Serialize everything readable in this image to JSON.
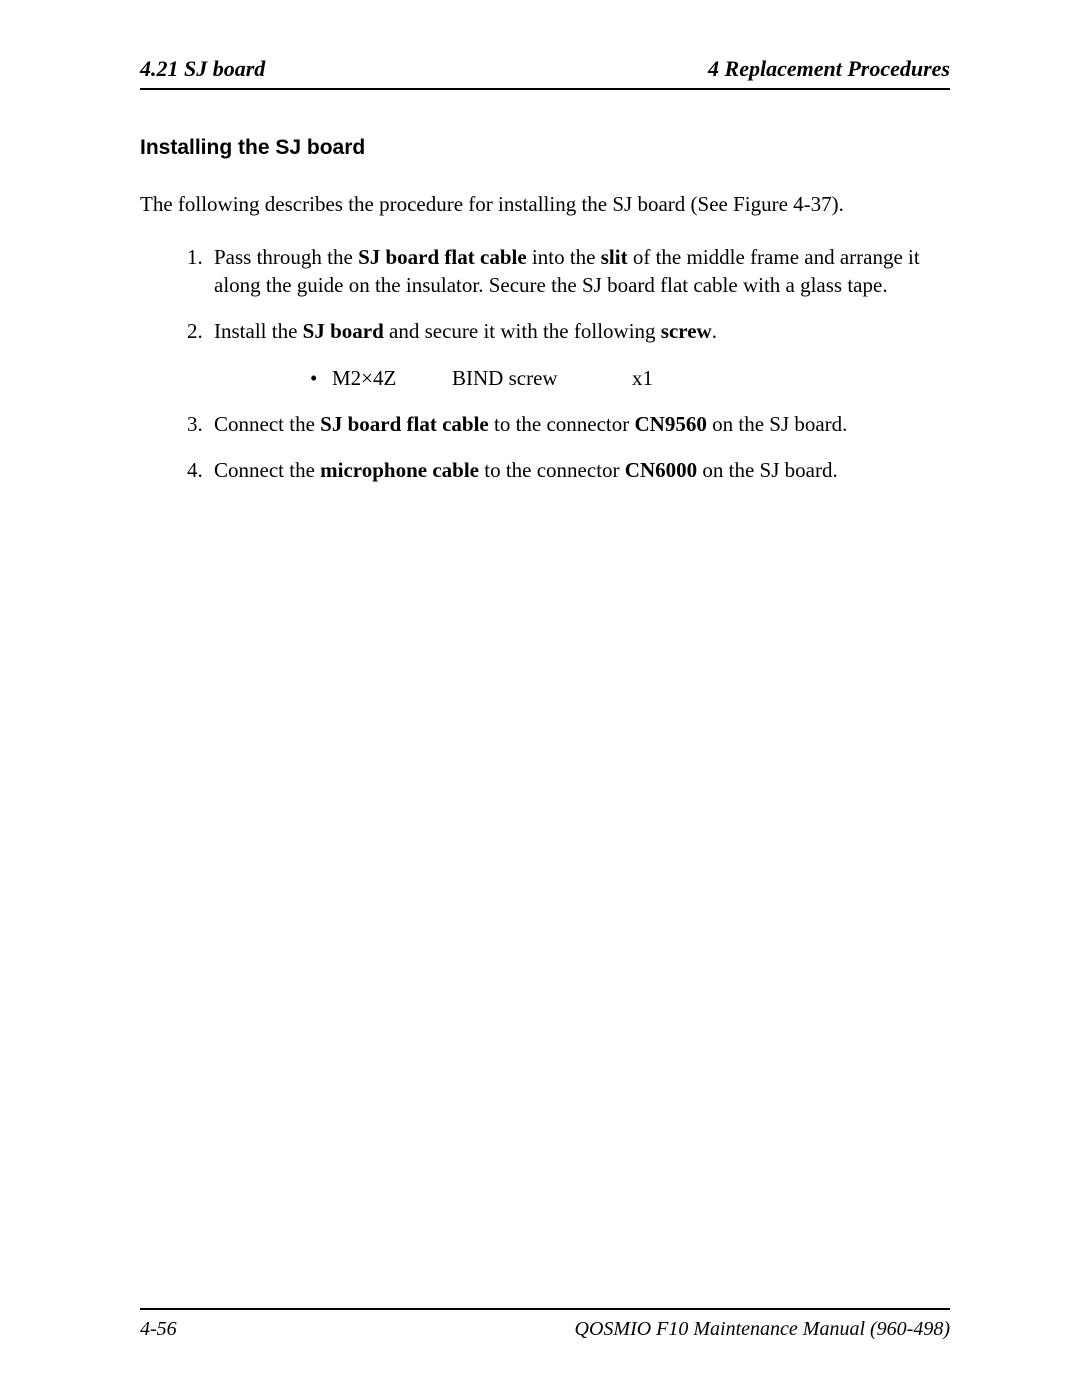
{
  "header": {
    "left": "4.21  SJ board",
    "right": "4  Replacement Procedures"
  },
  "section": {
    "title": "Installing the SJ board",
    "intro": "The following describes the procedure for installing the SJ board (See Figure 4-37).",
    "steps": {
      "s1_a": "Pass through the ",
      "s1_b": "SJ board flat cable",
      "s1_c": " into the ",
      "s1_d": "slit",
      "s1_e": " of the middle frame and arrange it along the guide on the insulator. Secure the SJ board flat cable with a glass tape.",
      "s2_a": "Install the ",
      "s2_b": "SJ board",
      "s2_c": " and secure it with the following ",
      "s2_d": "screw",
      "s2_e": ".",
      "bullet": {
        "spec": "M2×4Z",
        "type": "BIND screw",
        "qty": "x1"
      },
      "s3_a": "Connect the ",
      "s3_b": "SJ board flat cable",
      "s3_c": " to the connector ",
      "s3_d": "CN9560",
      "s3_e": " on the SJ board.",
      "s4_a": "Connect the ",
      "s4_b": "microphone cable",
      "s4_c": " to the connector ",
      "s4_d": "CN6000",
      "s4_e": " on the SJ board."
    }
  },
  "footer": {
    "left": "4-56",
    "right": "QOSMIO F10  Maintenance Manual (960-498)"
  },
  "glyphs": {
    "bullet": "•"
  }
}
